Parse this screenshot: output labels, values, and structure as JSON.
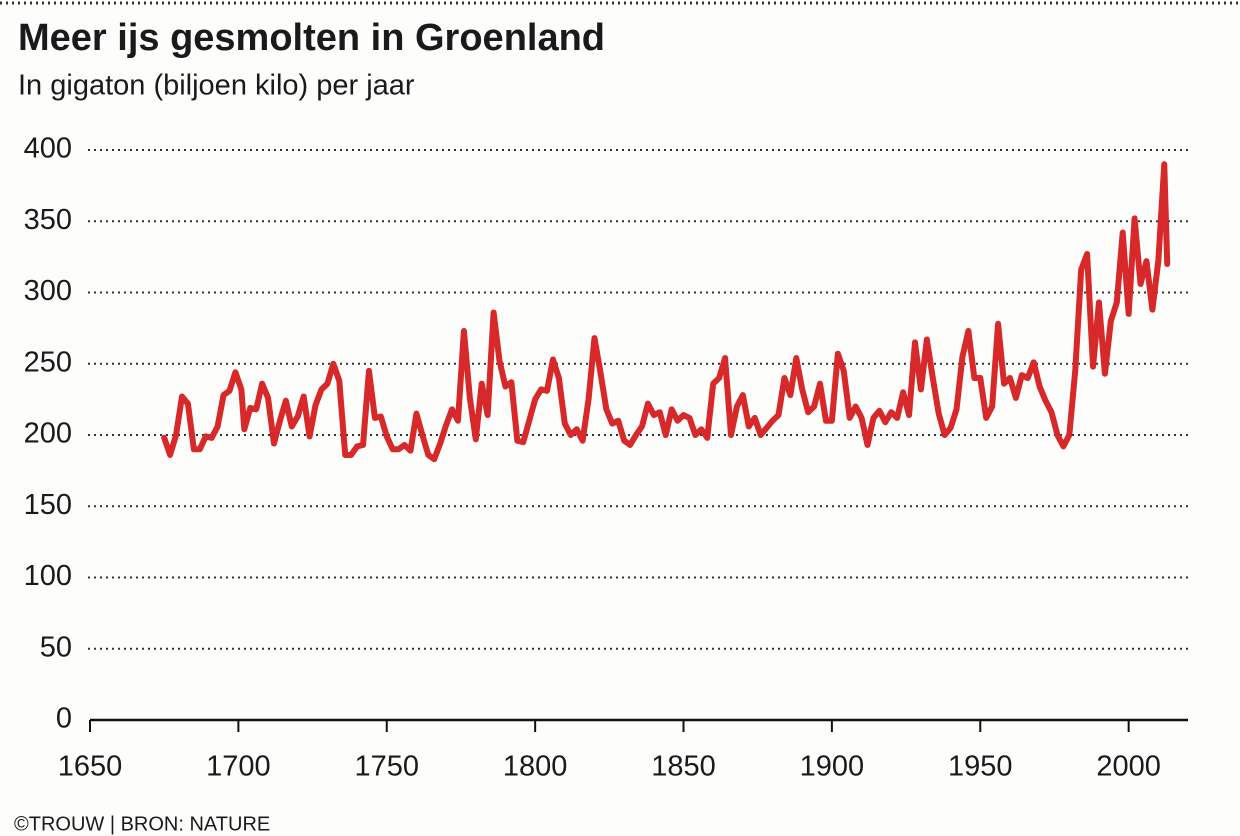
{
  "chart_data": {
    "type": "line",
    "title": "Meer ijs gesmolten in Groenland",
    "subtitle": "In gigaton (biljoen kilo) per jaar",
    "source": "©TROUW | BRON: NATURE",
    "color": "#d7282a",
    "x": [
      1675,
      1677,
      1679,
      1681,
      1683,
      1685,
      1687,
      1689,
      1691,
      1693,
      1695,
      1697,
      1699,
      1701,
      1702,
      1704,
      1706,
      1708,
      1710,
      1712,
      1714,
      1716,
      1718,
      1720,
      1722,
      1724,
      1726,
      1728,
      1730,
      1732,
      1734,
      1736,
      1738,
      1740,
      1742,
      1744,
      1746,
      1748,
      1750,
      1752,
      1754,
      1756,
      1758,
      1760,
      1762,
      1764,
      1766,
      1768,
      1770,
      1772,
      1774,
      1776,
      1778,
      1780,
      1782,
      1784,
      1786,
      1788,
      1790,
      1792,
      1794,
      1796,
      1798,
      1800,
      1802,
      1804,
      1806,
      1808,
      1810,
      1812,
      1814,
      1816,
      1818,
      1820,
      1822,
      1824,
      1826,
      1828,
      1830,
      1832,
      1834,
      1836,
      1838,
      1840,
      1842,
      1844,
      1846,
      1848,
      1850,
      1852,
      1854,
      1856,
      1858,
      1860,
      1862,
      1864,
      1866,
      1868,
      1870,
      1872,
      1874,
      1876,
      1878,
      1880,
      1882,
      1884,
      1886,
      1888,
      1890,
      1892,
      1894,
      1896,
      1898,
      1900,
      1902,
      1904,
      1906,
      1908,
      1910,
      1912,
      1914,
      1916,
      1918,
      1920,
      1922,
      1924,
      1926,
      1928,
      1930,
      1932,
      1934,
      1936,
      1938,
      1940,
      1942,
      1944,
      1946,
      1948,
      1950,
      1952,
      1954,
      1956,
      1958,
      1960,
      1962,
      1964,
      1966,
      1968,
      1970,
      1972,
      1974,
      1976,
      1978,
      1980,
      1982,
      1984,
      1986,
      1988,
      1990,
      1992,
      1994,
      1996,
      1998,
      2000,
      2002,
      2004,
      2006,
      2008,
      2010,
      2012,
      2013
    ],
    "values": [
      198,
      186,
      200,
      227,
      222,
      190,
      190,
      199,
      198,
      206,
      228,
      231,
      244,
      232,
      204,
      219,
      218,
      236,
      226,
      194,
      210,
      224,
      206,
      213,
      227,
      199,
      221,
      232,
      236,
      250,
      238,
      186,
      186,
      192,
      193,
      245,
      212,
      213,
      199,
      190,
      190,
      193,
      189,
      215,
      200,
      186,
      183,
      194,
      207,
      218,
      210,
      273,
      226,
      197,
      236,
      214,
      286,
      252,
      234,
      237,
      196,
      195,
      210,
      225,
      232,
      231,
      253,
      240,
      208,
      200,
      204,
      196,
      225,
      268,
      244,
      218,
      208,
      210,
      196,
      193,
      200,
      206,
      222,
      214,
      216,
      200,
      218,
      210,
      214,
      212,
      200,
      204,
      198,
      236,
      240,
      254,
      200,
      220,
      228,
      206,
      212,
      200,
      205,
      210,
      214,
      240,
      228,
      254,
      232,
      216,
      220,
      236,
      210,
      210,
      257,
      245,
      212,
      220,
      212,
      193,
      212,
      217,
      209,
      216,
      212,
      230,
      214,
      265,
      232,
      267,
      240,
      215,
      200,
      205,
      218,
      255,
      273,
      240,
      240,
      212,
      220,
      278,
      236,
      240,
      226,
      242,
      240,
      251,
      234,
      224,
      216,
      200,
      192,
      200,
      245,
      316,
      327,
      248,
      293,
      243,
      280,
      293,
      342,
      285,
      352,
      306,
      322,
      288,
      322,
      390,
      320
    ],
    "xlim": [
      1650,
      2020
    ],
    "xticks": [
      1650,
      1700,
      1750,
      1800,
      1850,
      1900,
      1950,
      2000
    ],
    "ylim": [
      0,
      400
    ],
    "yticks": [
      0,
      50,
      100,
      150,
      200,
      250,
      300,
      350,
      400
    ],
    "grid": true
  }
}
